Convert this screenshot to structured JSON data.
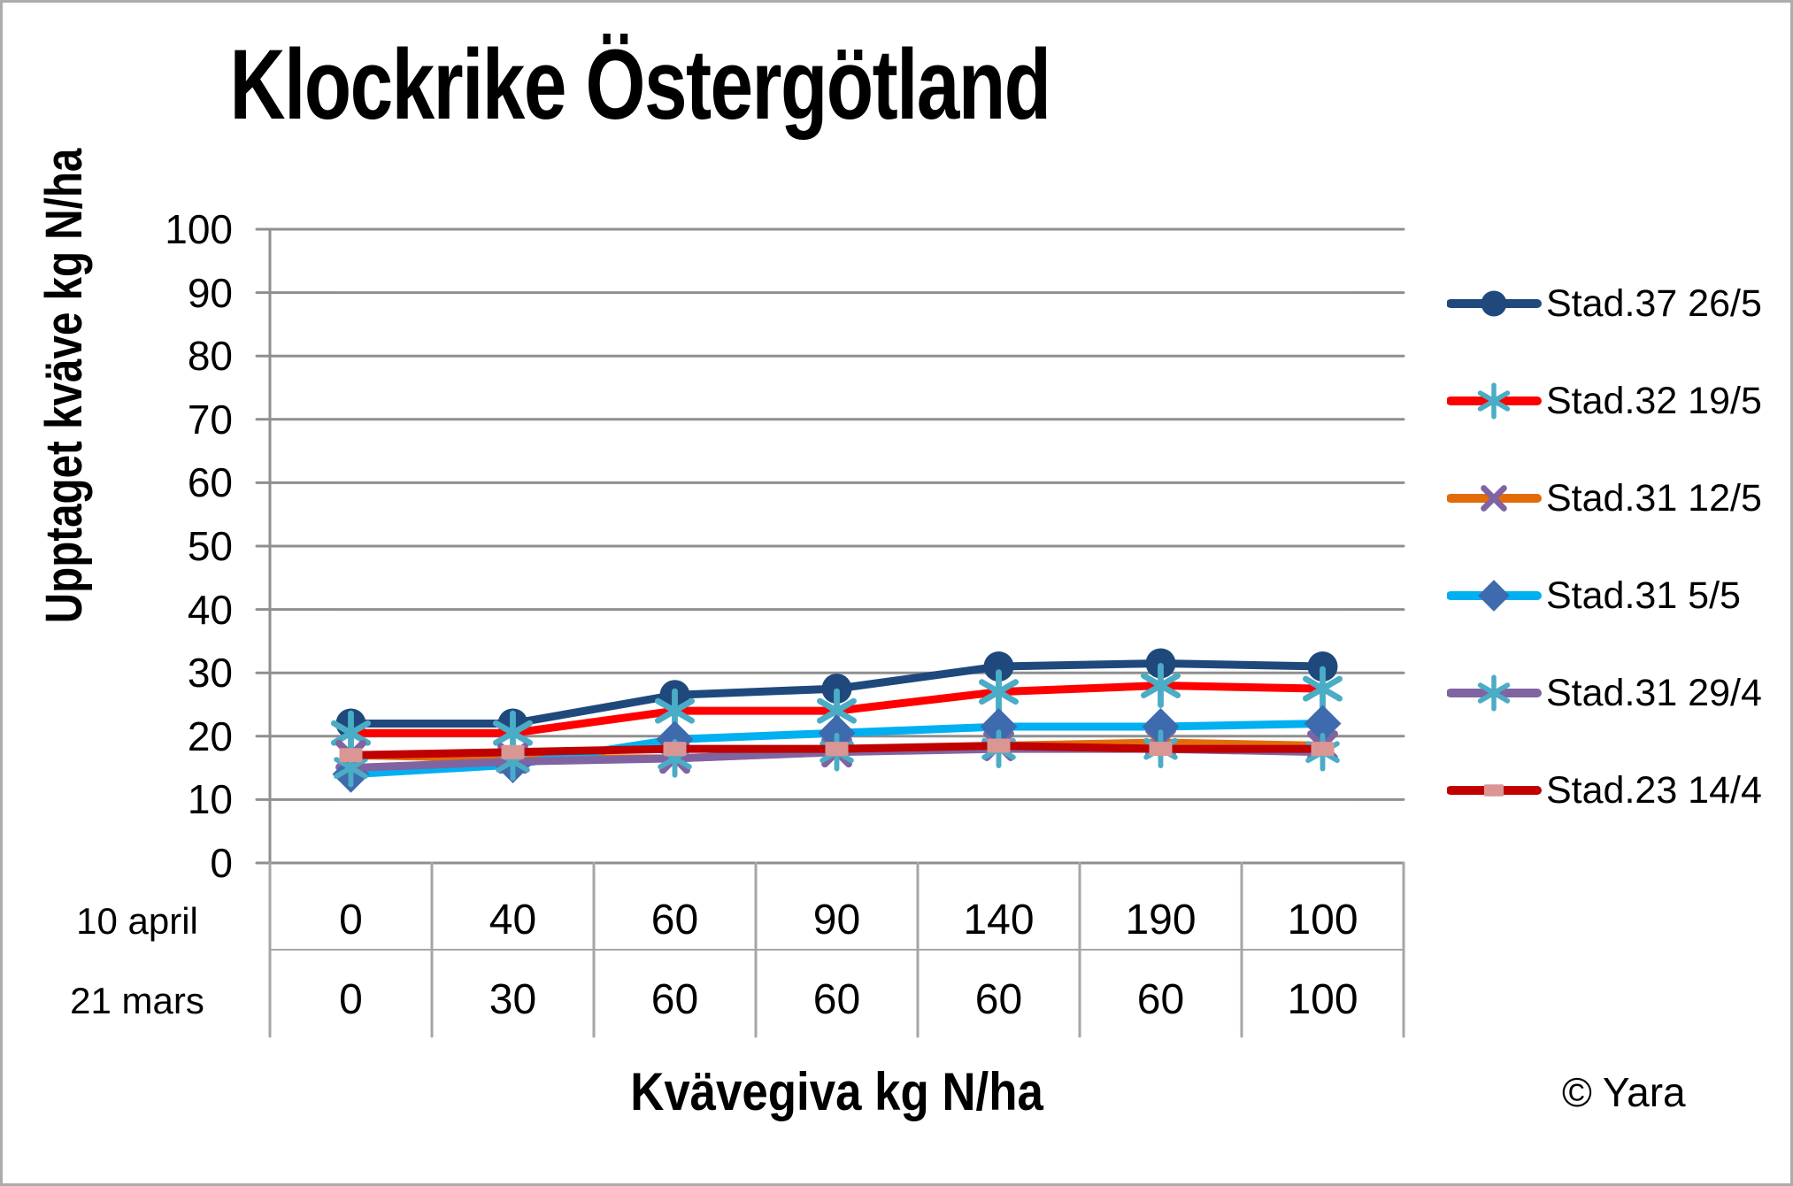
{
  "footer": {
    "copyright": "© Yara"
  },
  "chart_data": {
    "type": "line",
    "title": "Klockrike Östergötland",
    "grid": "horizontal",
    "grid_color": "#8F8F8F",
    "table_line_color": "#A6A6A6",
    "legend_position": "right",
    "y_axis": {
      "title": "Upptaget kväve kg N/ha",
      "min": 0,
      "max": 100,
      "step": 10,
      "ticks": [
        0,
        10,
        20,
        30,
        40,
        50,
        60,
        70,
        80,
        90,
        100
      ]
    },
    "x_axis": {
      "title": "Kvävegiva kg N/ha",
      "rows": [
        {
          "label": "10 april",
          "values": [
            "0",
            "40",
            "60",
            "90",
            "140",
            "190",
            "100"
          ]
        },
        {
          "label": "21 mars",
          "values": [
            "0",
            "30",
            "60",
            "60",
            "60",
            "60",
            "100"
          ]
        }
      ]
    },
    "series": [
      {
        "name": "Stad.37 26/5",
        "color": "#1F497D",
        "marker": "circle",
        "marker_color": "#1F497D",
        "marker_scale": 1,
        "values": [
          22,
          22,
          26.5,
          27.5,
          31,
          31.5,
          31
        ]
      },
      {
        "name": "Stad.32 19/5",
        "color": "#FF0000",
        "marker": "star6",
        "marker_color": "#4BACC6",
        "marker_scale": 1.05,
        "values": [
          20.5,
          20.5,
          24,
          24,
          27,
          28,
          27.5
        ]
      },
      {
        "name": "Stad.31 12/5",
        "color": "#E36C0A",
        "marker": "x",
        "marker_color": "#8064A2",
        "marker_scale": 1,
        "values": [
          17,
          16.5,
          16.5,
          17.5,
          18.5,
          19,
          18.5
        ]
      },
      {
        "name": "Stad.31 5/5",
        "color": "#00B0F0",
        "marker": "diamond",
        "marker_color": "#3E6BAD",
        "marker_scale": 1,
        "values": [
          14,
          15.5,
          19.5,
          20.5,
          21.5,
          21.5,
          22
        ]
      },
      {
        "name": "Stad.31 29/4",
        "color": "#8064A2",
        "marker": "star6",
        "marker_color": "#4BACC6",
        "marker_scale": 0.9,
        "values": [
          15,
          16,
          16.5,
          17.5,
          18,
          18,
          17.5
        ]
      },
      {
        "name": "Stad.23 14/4",
        "color": "#C00000",
        "marker": "square",
        "marker_color": "#D99694",
        "marker_scale": 1,
        "values": [
          17,
          17.5,
          18,
          18,
          18.5,
          18,
          18
        ]
      }
    ]
  }
}
